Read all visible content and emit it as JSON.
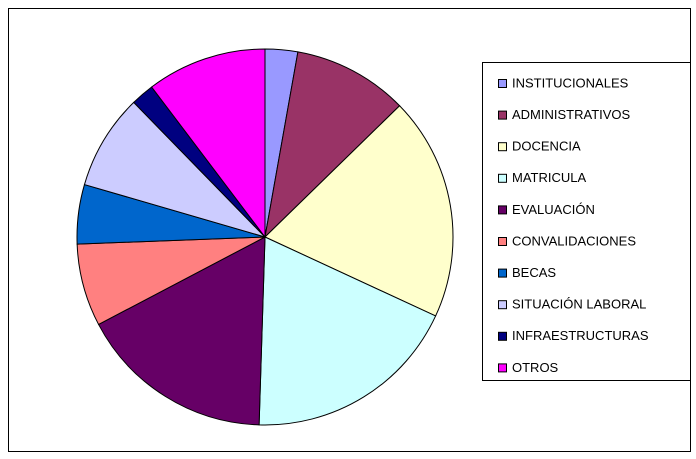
{
  "chart_data": {
    "type": "pie",
    "categories": [
      "INSTITUCIONALES",
      "ADMINISTRATIVOS",
      "DOCENCIA",
      "MATRICULA",
      "EVALUACIÓN",
      "CONVALIDACIONES",
      "BECAS",
      "SITUACIÓN LABORAL",
      "INFRAESTRUCTURAS",
      "OTROS"
    ],
    "values": [
      2.8,
      9.9,
      19.2,
      18.6,
      16.8,
      7.1,
      5.1,
      8.2,
      2.0,
      10.3
    ],
    "colors": [
      "#9999ff",
      "#993366",
      "#ffffcc",
      "#ccffff",
      "#660066",
      "#ff8080",
      "#0066cc",
      "#ccccff",
      "#000080",
      "#ff00ff"
    ]
  }
}
